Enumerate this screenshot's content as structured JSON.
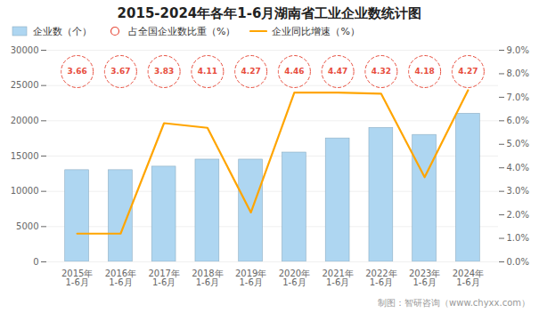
{
  "chart_data": {
    "type": "bar_line",
    "title": "2015-2024年各年1-6月湖南省工业企业数统计图",
    "caption": "制图：智研咨询（www.chyxx.com）",
    "categories": [
      "2015年\n1-6月",
      "2016年\n1-6月",
      "2017年\n1-6月",
      "2018年\n1-6月",
      "2019年\n1-6月",
      "2020年\n1-6月",
      "2021年\n1-6月",
      "2022年\n1-6月",
      "2023年\n1-6月",
      "2024年\n1-6月"
    ],
    "series": [
      {
        "name": "企业数（个）",
        "type": "bar",
        "color": "#AED6F1",
        "values": [
          13000,
          13000,
          13500,
          14500,
          14500,
          15500,
          17500,
          19000,
          18000,
          21000
        ]
      },
      {
        "name": "占全国企业数比重（%）",
        "type": "scatter",
        "marker": "circle",
        "line_style": "dashed",
        "color": "#E74C3C",
        "data_labels": true,
        "values": [
          3.66,
          3.67,
          3.83,
          4.11,
          4.27,
          4.46,
          4.47,
          4.32,
          4.18,
          4.27
        ]
      },
      {
        "name": "企业同比增速（%）",
        "type": "line",
        "axis": "y2",
        "color": "#FFA500",
        "values": [
          1.2,
          1.2,
          5.9,
          5.7,
          2.1,
          7.2,
          7.2,
          7.15,
          3.6,
          7.3
        ]
      }
    ],
    "ylim": [
      0,
      30000
    ],
    "yticks": [
      0,
      5000,
      10000,
      15000,
      20000,
      25000,
      30000
    ],
    "y2lim": [
      0,
      9
    ],
    "y2ticks": [
      {
        "value": 0,
        "label": "0.0%"
      },
      {
        "value": 1,
        "label": "1.0%"
      },
      {
        "value": 2,
        "label": "2.0%"
      },
      {
        "value": 3,
        "label": "3.0%"
      },
      {
        "value": 4,
        "label": "4.0%"
      },
      {
        "value": 5,
        "label": "5.0%"
      },
      {
        "value": 6,
        "label": "6.0%"
      },
      {
        "value": 7,
        "label": "7.0%"
      },
      {
        "value": 8,
        "label": "8.0%"
      },
      {
        "value": 9,
        "label": "9.0%"
      }
    ],
    "grid": true,
    "legend": "upper left"
  }
}
